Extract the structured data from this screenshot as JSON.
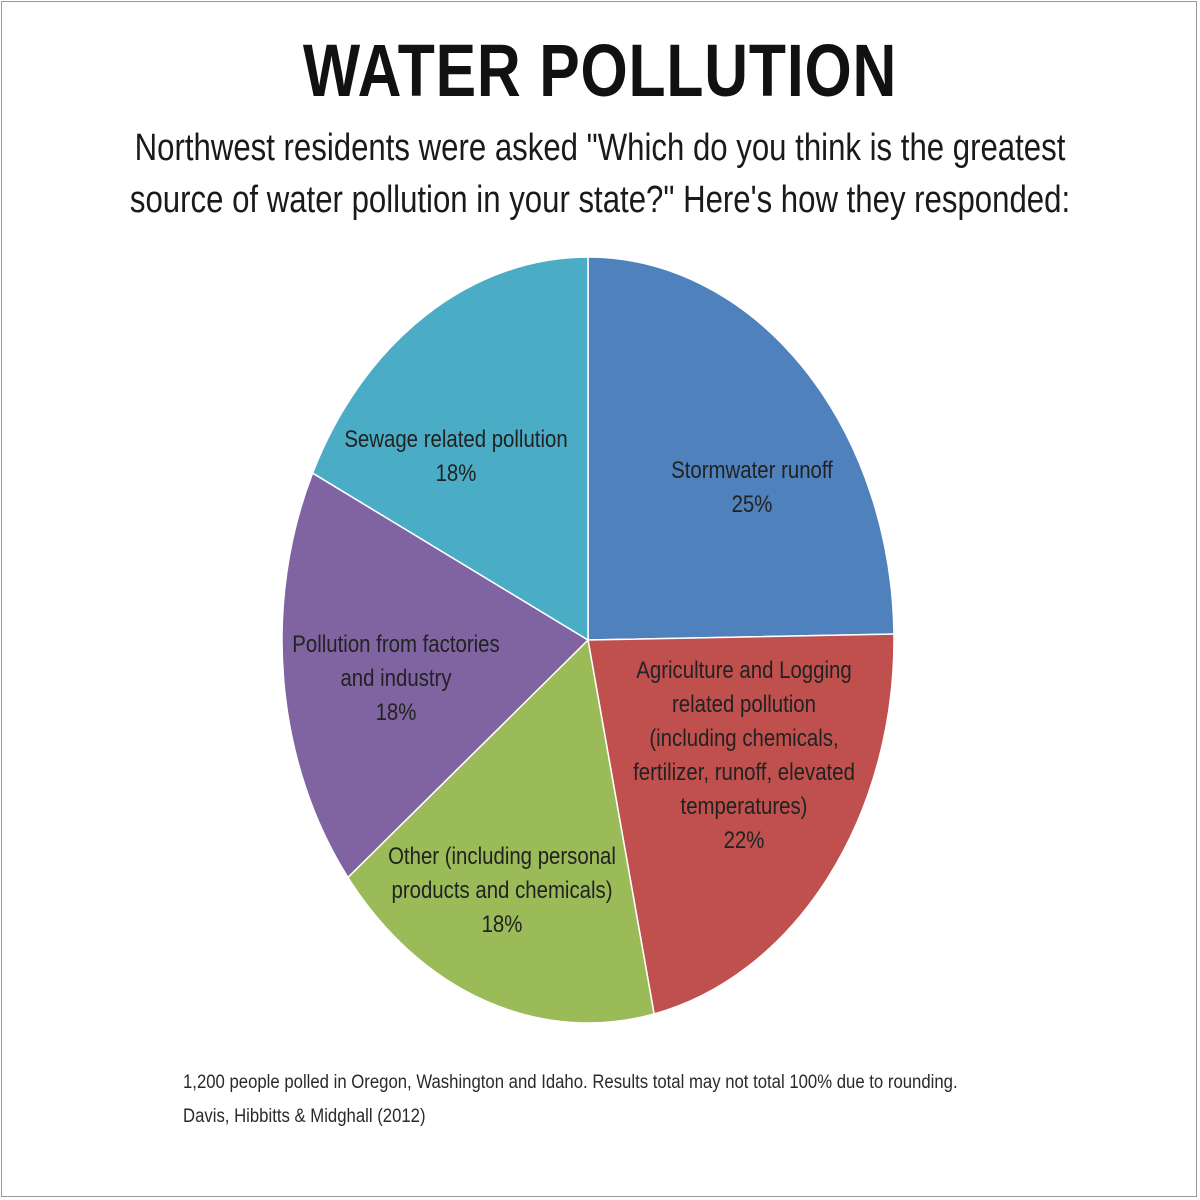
{
  "page": {
    "title": "WATER POLLUTION",
    "subtitle_lines": [
      "Northwest residents were asked \"Which do you think is the greatest",
      "source of water pollution in your state?\" Here's how they responded:"
    ],
    "footnote_lines": [
      "1,200 people polled in Oregon, Washington and Idaho. Results total may not total 100% due to rounding.",
      "Davis, Hibbitts & Midghall (2012)"
    ]
  },
  "chart_data": {
    "type": "pie",
    "title": "WATER POLLUTION",
    "start": "12 o'clock",
    "direction": "clockwise",
    "slices": [
      {
        "label_lines": [
          "Stormwater runoff"
        ],
        "value": 25,
        "value_label": "25%",
        "color": "#4F81BD"
      },
      {
        "label_lines": [
          "Agriculture and Logging",
          "related pollution",
          "(including chemicals,",
          "fertilizer, runoff, elevated",
          "temperatures)"
        ],
        "value": 22,
        "value_label": "22%",
        "color": "#C0504D"
      },
      {
        "label_lines": [
          "Other (including personal",
          "products and chemicals)"
        ],
        "value": 18,
        "value_label": "18%",
        "color": "#9BBB59"
      },
      {
        "label_lines": [
          "Pollution from factories",
          "and industry"
        ],
        "value": 18,
        "value_label": "18%",
        "color": "#8064A2"
      },
      {
        "label_lines": [
          "Sewage related pollution"
        ],
        "value": 18,
        "value_label": "18%",
        "color": "#4BACC6"
      }
    ]
  }
}
